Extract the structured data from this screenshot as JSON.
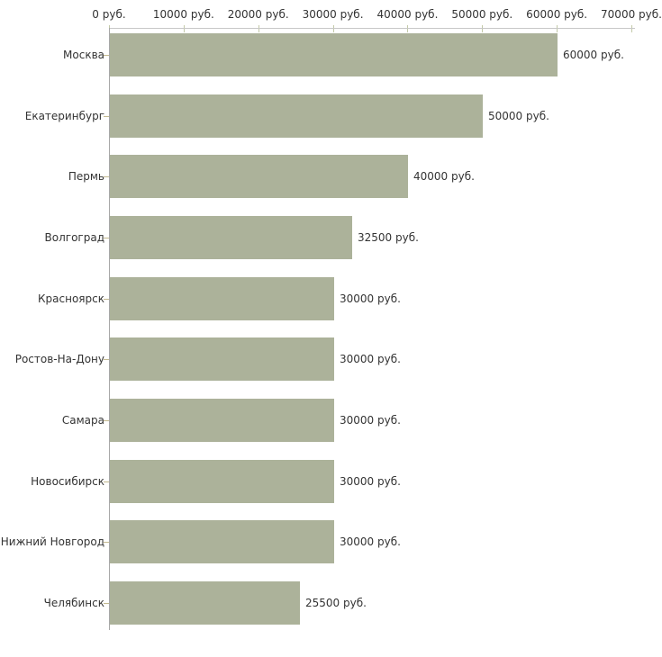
{
  "chart_data": {
    "type": "bar",
    "orientation": "horizontal",
    "title": "",
    "xlabel": "",
    "ylabel": "",
    "categories": [
      "Москва",
      "Екатеринбург",
      "Пермь",
      "Волгоград",
      "Красноярск",
      "Ростов-На-Дону",
      "Самара",
      "Новосибирск",
      "Нижний Новгород",
      "Челябинск"
    ],
    "values": [
      60000,
      50000,
      40000,
      32500,
      30000,
      30000,
      30000,
      30000,
      30000,
      25500
    ],
    "value_labels": [
      "60000 руб.",
      "50000 руб.",
      "40000 руб.",
      "32500 руб.",
      "30000 руб.",
      "30000 руб.",
      "30000 руб.",
      "30000 руб.",
      "30000 руб.",
      "25500 руб."
    ],
    "x_ticks": [
      0,
      10000,
      20000,
      30000,
      40000,
      50000,
      60000,
      70000
    ],
    "x_tick_labels": [
      "0 руб.",
      "10000 руб.",
      "20000 руб.",
      "30000 руб.",
      "40000 руб.",
      "50000 руб.",
      "60000 руб.",
      "70000 руб."
    ],
    "xlim": [
      0,
      70000
    ],
    "grid": false,
    "legend": false,
    "x_axis_position": "top"
  },
  "colors": {
    "bar": "#acb29a",
    "x_axis_line": "#c8c8c8",
    "y_axis_line": "#a8a8a8",
    "x_tick": "#c3c9a8",
    "y_tick": "#c3b98f",
    "text": "#333333",
    "background": "#ffffff"
  }
}
